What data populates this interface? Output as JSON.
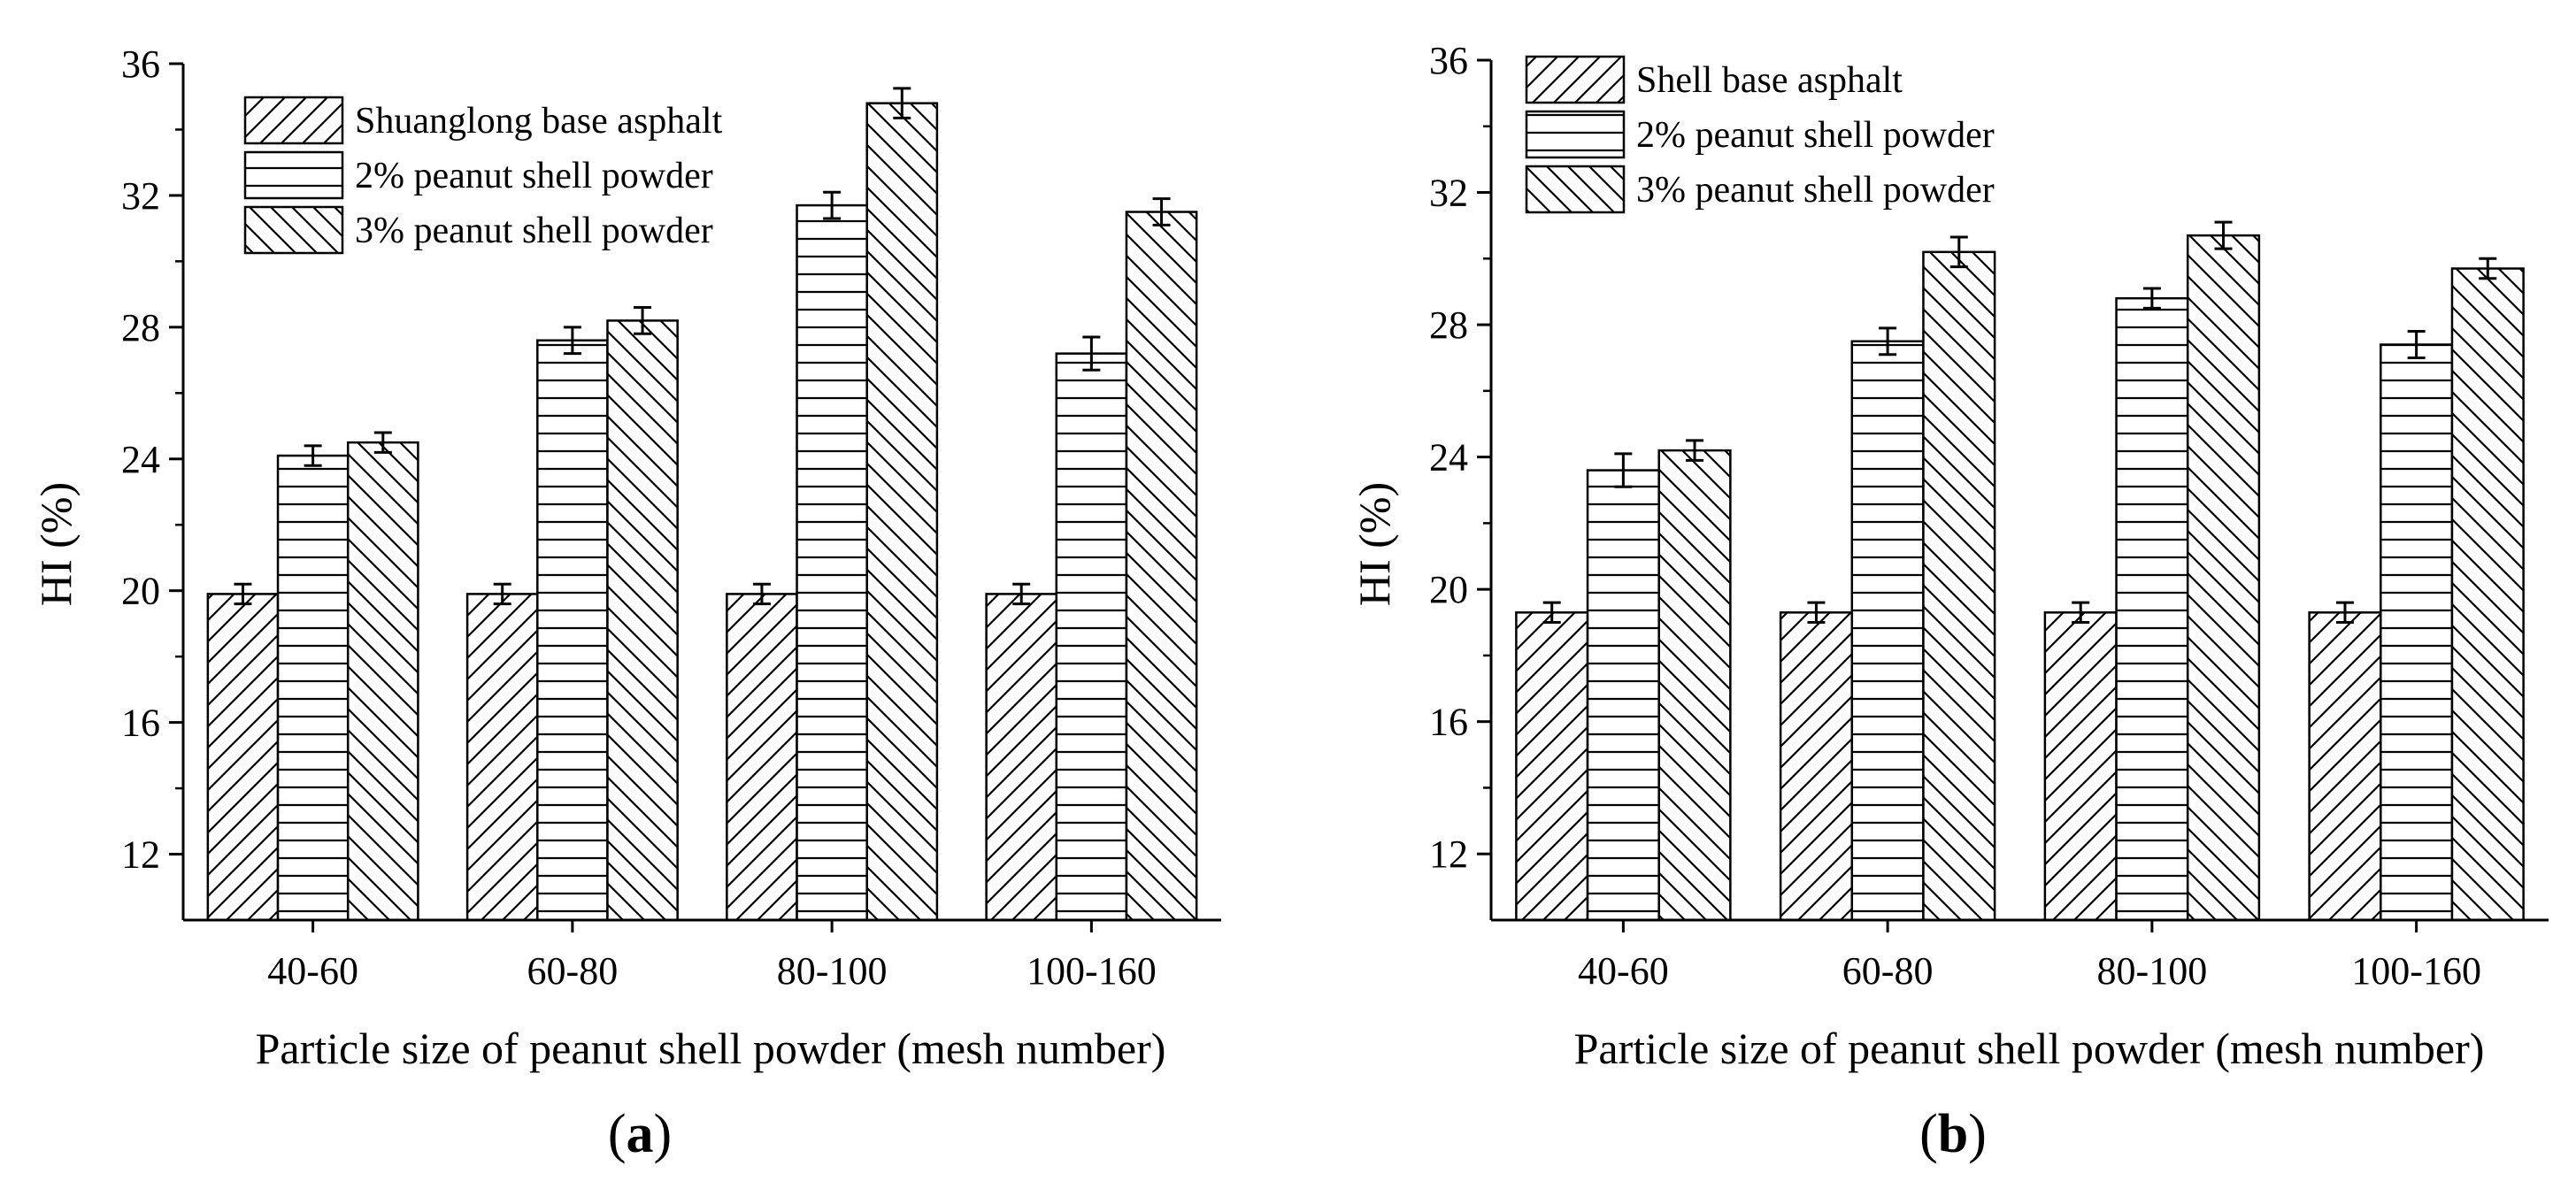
{
  "figure": {
    "panels": [
      {
        "label_open": "(",
        "label_letter": "a",
        "label_close": ")"
      },
      {
        "label_open": "(",
        "label_letter": "b",
        "label_close": ")"
      }
    ]
  },
  "chart_data": [
    {
      "type": "bar",
      "panel": "a",
      "title": "",
      "xlabel": "Particle size of peanut shell powder (mesh number)",
      "ylabel": "HI (%)",
      "ylim": [
        10,
        36
      ],
      "yticks": [
        12,
        16,
        20,
        24,
        28,
        32,
        36
      ],
      "grid": false,
      "legend_position": "top-left",
      "categories": [
        "40-60",
        "60-80",
        "80-100",
        "100-160"
      ],
      "series": [
        {
          "name": "Shuanglong base asphalt",
          "pattern": "diagonal-up",
          "values": [
            19.9,
            19.9,
            19.9,
            19.9
          ],
          "errors": [
            0.3,
            0.3,
            0.3,
            0.3
          ]
        },
        {
          "name": "2% peanut shell powder",
          "pattern": "horizontal",
          "values": [
            24.1,
            27.6,
            31.7,
            27.2
          ],
          "errors": [
            0.3,
            0.4,
            0.4,
            0.5
          ]
        },
        {
          "name": "3% peanut shell powder",
          "pattern": "diagonal-down",
          "values": [
            24.5,
            28.2,
            34.8,
            31.5
          ],
          "errors": [
            0.3,
            0.4,
            0.45,
            0.4
          ]
        }
      ]
    },
    {
      "type": "bar",
      "panel": "b",
      "title": "",
      "xlabel": "Particle size of peanut shell powder (mesh number)",
      "ylabel": "HI (%)",
      "ylim": [
        10,
        36
      ],
      "yticks": [
        12,
        16,
        20,
        24,
        28,
        32,
        36
      ],
      "grid": false,
      "legend_position": "top-left",
      "categories": [
        "40-60",
        "60-80",
        "80-100",
        "100-160"
      ],
      "series": [
        {
          "name": "Shell base asphalt",
          "pattern": "diagonal-up",
          "values": [
            19.3,
            19.3,
            19.3,
            19.3
          ],
          "errors": [
            0.3,
            0.3,
            0.3,
            0.3
          ]
        },
        {
          "name": "2% peanut shell powder",
          "pattern": "horizontal",
          "values": [
            23.6,
            27.5,
            28.8,
            27.4
          ],
          "errors": [
            0.5,
            0.4,
            0.3,
            0.4
          ]
        },
        {
          "name": "3% peanut shell powder",
          "pattern": "diagonal-down",
          "values": [
            24.2,
            30.2,
            30.7,
            29.7
          ],
          "errors": [
            0.3,
            0.45,
            0.4,
            0.3
          ]
        }
      ]
    }
  ]
}
